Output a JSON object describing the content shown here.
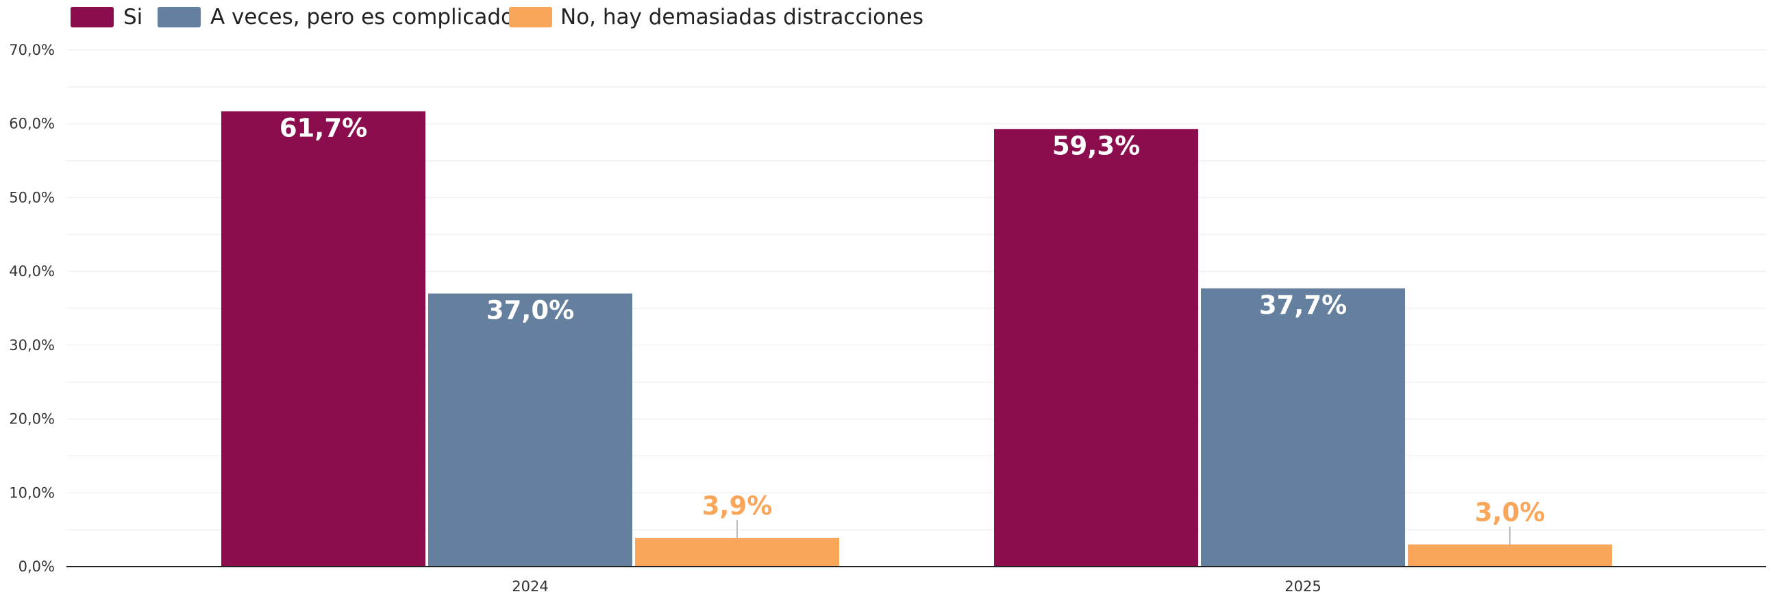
{
  "chart_data": {
    "type": "bar",
    "categories": [
      "2024",
      "2025"
    ],
    "series": [
      {
        "name": "Si",
        "values": [
          61.7,
          59.3
        ],
        "labels": [
          "61,7%",
          "59,3%"
        ],
        "color": "#8B0D4E"
      },
      {
        "name": "A veces, pero es complicado",
        "values": [
          37.0,
          37.7
        ],
        "labels": [
          "37,0%",
          "37,7%"
        ],
        "color": "#65809F"
      },
      {
        "name": "No, hay demasiadas distracciones",
        "values": [
          3.9,
          3.0
        ],
        "labels": [
          "3,9%",
          "3,0%"
        ],
        "color": "#F9A65A"
      }
    ],
    "ylim": [
      0,
      70
    ],
    "yticks": [
      0,
      10,
      20,
      30,
      40,
      50,
      60,
      70
    ],
    "ytick_labels": [
      "0,0%",
      "10,0%",
      "20,0%",
      "30,0%",
      "40,0%",
      "50,0%",
      "60,0%",
      "70,0%"
    ],
    "grid": true,
    "legend_position": "top-left",
    "title": "",
    "xlabel": "",
    "ylabel": ""
  }
}
